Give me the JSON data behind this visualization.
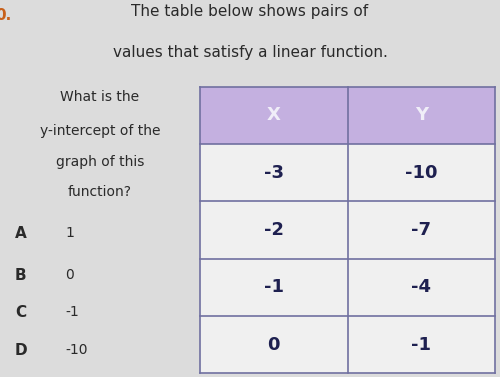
{
  "title_line1": "The table below shows pairs of",
  "title_line2": "values that satisfy a linear function.",
  "question_line1": "What is the",
  "question_line2": "y-intercept of the",
  "question_line3": "graph of this",
  "question_line4": "function?",
  "table_headers": [
    "X",
    "Y"
  ],
  "table_data": [
    [
      "-3",
      "-10"
    ],
    [
      "-2",
      "-7"
    ],
    [
      "-1",
      "-4"
    ],
    [
      "0",
      "-1"
    ]
  ],
  "choices": [
    [
      "A",
      "1"
    ],
    [
      "B",
      "0"
    ],
    [
      "C",
      "-1"
    ],
    [
      "D",
      "-10"
    ]
  ],
  "header_bg_color": "#c4b0e0",
  "header_text_color": "#f0eef8",
  "table_border_color": "#7070a0",
  "cell_bg_color": "#f0f0f0",
  "body_bg_color": "#dcdcdc",
  "title_fontsize": 11,
  "question_fontsize": 10,
  "table_fontsize": 13,
  "choice_label_fontsize": 11,
  "choice_val_fontsize": 10,
  "question_number": "0.",
  "question_number_color": "#c8601a"
}
